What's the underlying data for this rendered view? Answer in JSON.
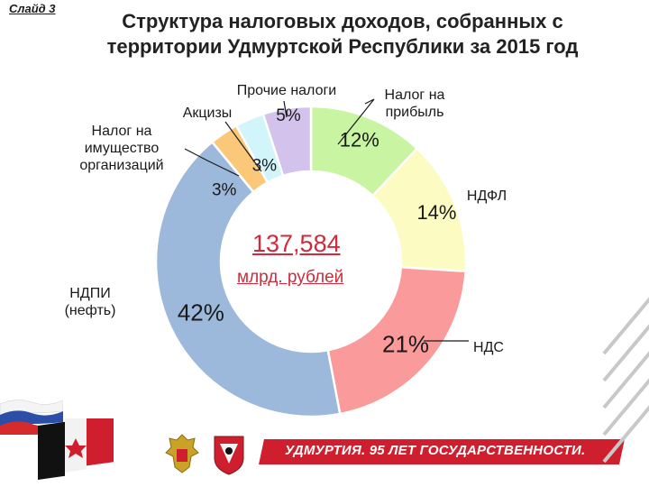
{
  "slide": {
    "label": "Слайд 3"
  },
  "title": {
    "line1": "Структура налоговых доходов, собранных с",
    "line2": "территории Удмуртской Республики за 2015 год"
  },
  "center": {
    "value": "137,584",
    "unit": "млрд. рублей"
  },
  "footer": {
    "text": "УДМУРТИЯ. 95 ЛЕТ ГОСУДАРСТВЕННОСТИ."
  },
  "colors": {
    "accent": "#d22a3a",
    "footer_band": "#cf1f2f"
  },
  "icons": [
    "russian-flag-icon",
    "udmurt-flag-icon",
    "russian-coat-of-arms-icon",
    "udmurt-coat-of-arms-icon"
  ],
  "chart_data": {
    "type": "pie",
    "style": "donut",
    "title": "Структура налоговых доходов, собранных с территории Удмуртской Республики за 2015 год",
    "total": "137,584 млрд. рублей",
    "categories": [
      "Налог на прибыль",
      "НДФЛ",
      "НДС",
      "НДПИ (нефть)",
      "Налог на имущество организаций",
      "Акцизы",
      "Прочие налоги"
    ],
    "values": [
      12,
      14,
      21,
      42,
      3,
      3,
      5
    ],
    "value_labels": [
      "12%",
      "14%",
      "21%",
      "42%",
      "3%",
      "3%",
      "5%"
    ],
    "colors": [
      "#c9f5a3",
      "#fbfbc2",
      "#fa9a9a",
      "#9cb8da",
      "#fac878",
      "#d2f4fb",
      "#d2c2ec"
    ],
    "legend": "none",
    "labels": "outside-with-leader-lines"
  }
}
